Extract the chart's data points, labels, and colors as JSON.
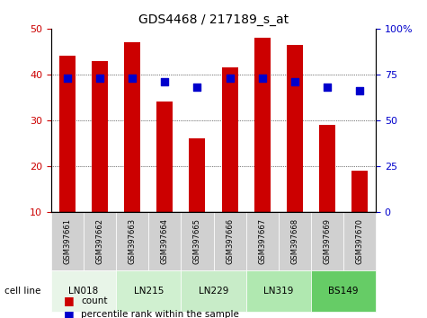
{
  "title": "GDS4468 / 217189_s_at",
  "samples": [
    "GSM397661",
    "GSM397662",
    "GSM397663",
    "GSM397664",
    "GSM397665",
    "GSM397666",
    "GSM397667",
    "GSM397668",
    "GSM397669",
    "GSM397670"
  ],
  "counts": [
    44,
    43,
    47,
    34,
    26,
    41.5,
    48,
    46.5,
    29,
    19
  ],
  "percentile_ranks": [
    73,
    73,
    73,
    71,
    68,
    73,
    73,
    71,
    68,
    66
  ],
  "cell_lines": [
    {
      "name": "LN018",
      "samples": [
        0,
        1
      ],
      "color": "#e8f5e8"
    },
    {
      "name": "LN215",
      "samples": [
        2,
        3
      ],
      "color": "#d0f0d0"
    },
    {
      "name": "LN229",
      "samples": [
        4,
        5
      ],
      "color": "#c8ecc8"
    },
    {
      "name": "LN319",
      "samples": [
        6,
        7
      ],
      "color": "#b0e8b0"
    },
    {
      "name": "BS149",
      "samples": [
        8,
        9
      ],
      "color": "#66cc66"
    }
  ],
  "bar_color": "#cc0000",
  "dot_color": "#0000cc",
  "left_ylim": [
    10,
    50
  ],
  "left_yticks": [
    10,
    20,
    30,
    40,
    50
  ],
  "right_ylim": [
    0,
    100
  ],
  "right_yticks": [
    0,
    25,
    50,
    75,
    100
  ],
  "right_yticklabels": [
    "0",
    "25",
    "50",
    "75",
    "100%"
  ],
  "grid_values": [
    20,
    30,
    40
  ],
  "bar_color_label": "count",
  "dot_color_label": "percentile rank within the sample",
  "cell_line_label": "cell line",
  "xlabel_color_red": "#cc0000",
  "xlabel_color_blue": "#0000cc"
}
